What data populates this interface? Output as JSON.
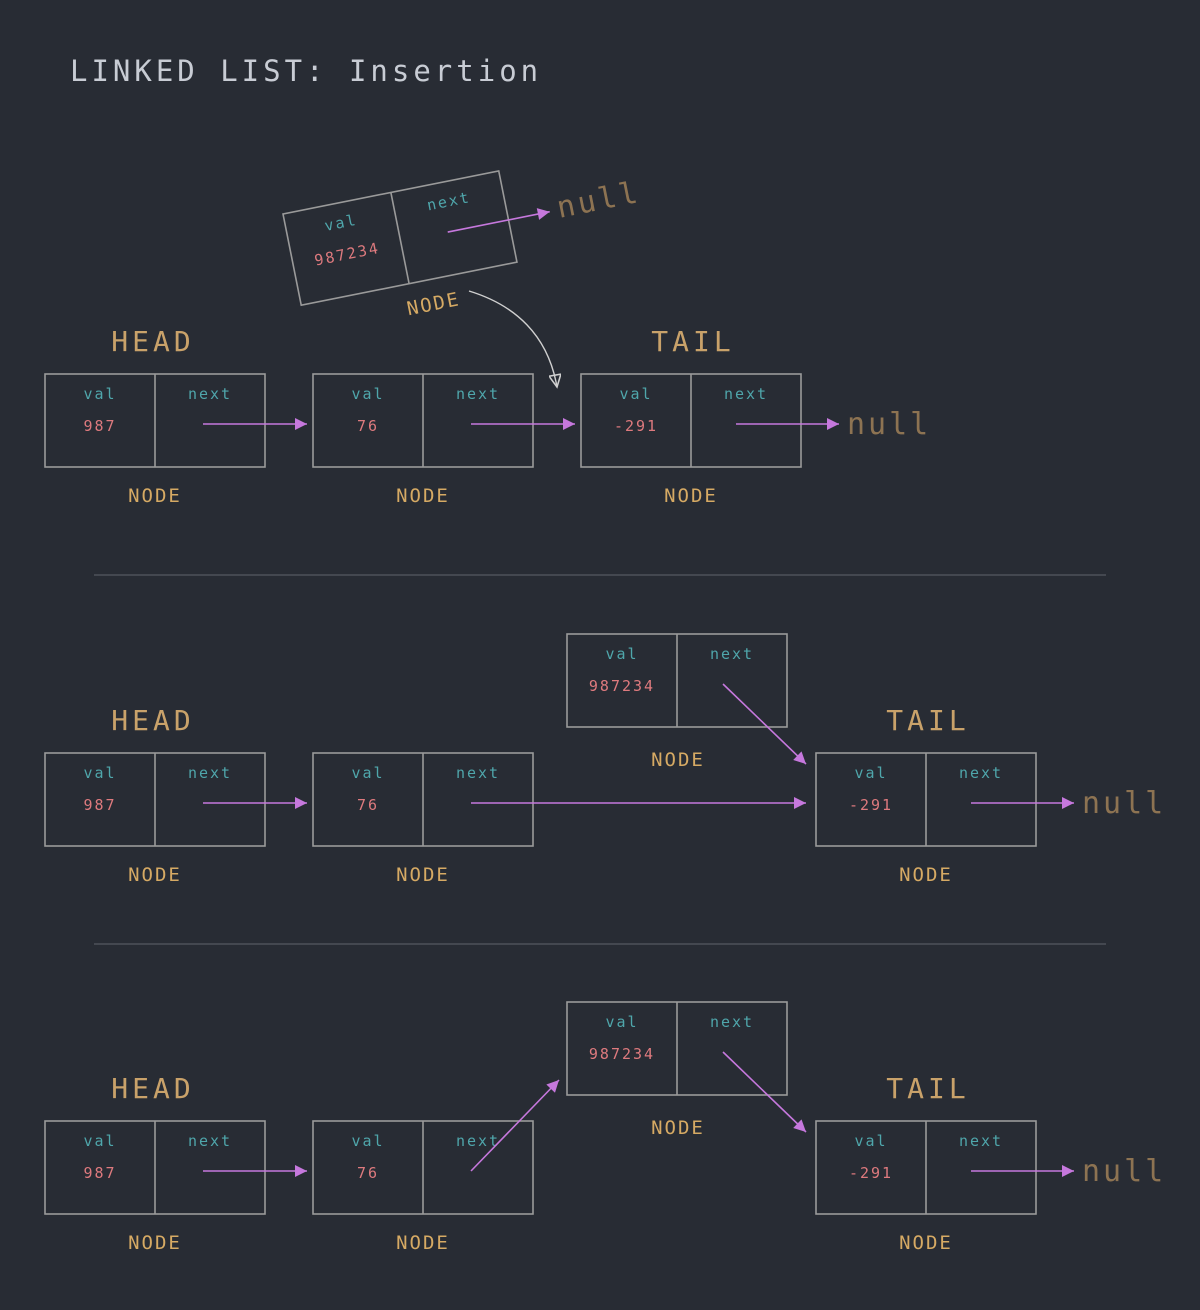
{
  "title": "LINKED LIST: Insertion",
  "colors": {
    "background": "#282c34",
    "box": "#9a9a9a",
    "field_label": "#4fa6ab",
    "value": "#de7a7e",
    "node_label": "#d6aa64",
    "head_tail": "#c9a26a",
    "null": "#8d7352",
    "pointer": "#c678dd",
    "move_arrow": "#d0d0d0",
    "divider": "#4e525a"
  },
  "labels": {
    "val": "val",
    "next": "next",
    "node": "NODE",
    "head": "HEAD",
    "tail": "TAIL",
    "null": "null"
  },
  "stages": [
    {
      "nodes": [
        {
          "val": "987",
          "role": "head"
        },
        {
          "val": "76"
        },
        {
          "val": "-291",
          "role": "tail",
          "points_to_null": true
        }
      ],
      "new_node": {
        "val": "987234",
        "points_to_null": true,
        "state": "detached"
      }
    },
    {
      "nodes": [
        {
          "val": "987",
          "role": "head"
        },
        {
          "val": "76"
        },
        {
          "val": "-291",
          "role": "tail",
          "points_to_null": true
        }
      ],
      "new_node": {
        "val": "987234",
        "points_to": "-291"
      }
    },
    {
      "nodes": [
        {
          "val": "987",
          "role": "head"
        },
        {
          "val": "76"
        },
        {
          "val": "-291",
          "role": "tail",
          "points_to_null": true
        }
      ],
      "new_node": {
        "val": "987234",
        "points_to": "-291",
        "pointed_by": "76"
      }
    }
  ]
}
